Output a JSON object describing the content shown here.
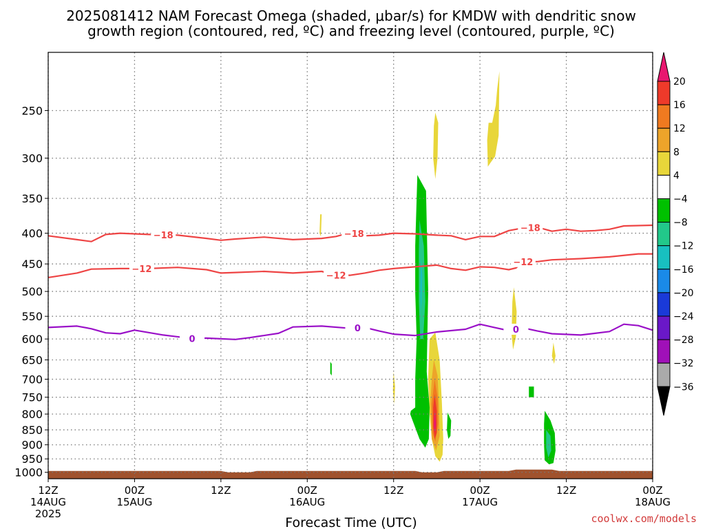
{
  "title": {
    "line1": "2025081412 NAM Forecast Omega (shaded, μbar/s) for KMDW with dendritic snow",
    "line2": "growth region (contoured, red, ºC) and freezing level (contoured, purple, ºC)"
  },
  "credit": "coolwx.com/models",
  "colors": {
    "snow_growth_contour": "#ee4444",
    "freezing_contour": "#9a10c8",
    "ground": "#a0522d",
    "grid": "#777777"
  },
  "chart_data": {
    "type": "heatmap",
    "xlabel": "Forecast Time (UTC)",
    "x_range_hours": [
      0,
      84
    ],
    "y_range_mb": [
      200,
      1025
    ],
    "y_scale": "log-pressure (inverted)",
    "grid": true,
    "x_ticks": [
      {
        "hour": 0,
        "label": "12Z",
        "date": "14AUG",
        "year": "2025"
      },
      {
        "hour": 12,
        "label": "00Z",
        "date": "15AUG"
      },
      {
        "hour": 24,
        "label": "12Z"
      },
      {
        "hour": 36,
        "label": "00Z",
        "date": "16AUG"
      },
      {
        "hour": 48,
        "label": "12Z"
      },
      {
        "hour": 60,
        "label": "00Z",
        "date": "17AUG"
      },
      {
        "hour": 72,
        "label": "12Z"
      },
      {
        "hour": 84,
        "label": "00Z",
        "date": "18AUG"
      }
    ],
    "y_ticks": [
      250,
      300,
      350,
      400,
      450,
      500,
      550,
      600,
      650,
      700,
      750,
      800,
      850,
      900,
      950,
      1000
    ],
    "colorbar": {
      "labels": [
        "20",
        "16",
        "12",
        "8",
        "4",
        "−4",
        "−8",
        "−12",
        "−16",
        "−20",
        "−24",
        "−28",
        "−32",
        "−36"
      ],
      "colors": [
        "#e8176f",
        "#ee3a2a",
        "#f07a20",
        "#eda42a",
        "#e8d63a",
        "#ffffff",
        "#00c000",
        "#22c88a",
        "#18c0c0",
        "#1a8ae8",
        "#1a3ad8",
        "#6a18c8",
        "#a010b8",
        "#aaaaaa",
        "#000000"
      ]
    },
    "contours": {
      "minus18": {
        "label": "−18",
        "label_hours": [
          16,
          42.5,
          67
        ],
        "points": [
          [
            0,
            404
          ],
          [
            4,
            410
          ],
          [
            6,
            413
          ],
          [
            8,
            402
          ],
          [
            10,
            400
          ],
          [
            14,
            402
          ],
          [
            18,
            403
          ],
          [
            22,
            408
          ],
          [
            24,
            411
          ],
          [
            26,
            409
          ],
          [
            30,
            406
          ],
          [
            34,
            410
          ],
          [
            38,
            408
          ],
          [
            40,
            405
          ],
          [
            42,
            399
          ],
          [
            44,
            404
          ],
          [
            46,
            403
          ],
          [
            48,
            400
          ],
          [
            51,
            401
          ],
          [
            54,
            403
          ],
          [
            56,
            404
          ],
          [
            58,
            410
          ],
          [
            60,
            405
          ],
          [
            62,
            405
          ],
          [
            64,
            396
          ],
          [
            66,
            392
          ],
          [
            68,
            391
          ],
          [
            70,
            397
          ],
          [
            72,
            394
          ],
          [
            74,
            397
          ],
          [
            76,
            396
          ],
          [
            78,
            394
          ],
          [
            80,
            389
          ],
          [
            84,
            388
          ]
        ]
      },
      "minus12": {
        "label": "−12",
        "label_hours": [
          13,
          40,
          66
        ],
        "points": [
          [
            0,
            474
          ],
          [
            4,
            466
          ],
          [
            6,
            459
          ],
          [
            10,
            458
          ],
          [
            14,
            458
          ],
          [
            18,
            456
          ],
          [
            22,
            460
          ],
          [
            24,
            466
          ],
          [
            26,
            465
          ],
          [
            30,
            463
          ],
          [
            34,
            466
          ],
          [
            38,
            463
          ],
          [
            40,
            470
          ],
          [
            42,
            470
          ],
          [
            44,
            466
          ],
          [
            46,
            461
          ],
          [
            48,
            458
          ],
          [
            52,
            454
          ],
          [
            54,
            452
          ],
          [
            56,
            458
          ],
          [
            58,
            461
          ],
          [
            60,
            455
          ],
          [
            62,
            456
          ],
          [
            64,
            460
          ],
          [
            65,
            457
          ],
          [
            66,
            446
          ],
          [
            68,
            446
          ],
          [
            70,
            443
          ],
          [
            74,
            441
          ],
          [
            78,
            438
          ],
          [
            82,
            433
          ],
          [
            84,
            433
          ]
        ]
      },
      "freezing": {
        "label": "0",
        "label_hours": [
          20,
          43,
          65
        ],
        "points": [
          [
            0,
            574
          ],
          [
            4,
            571
          ],
          [
            6,
            577
          ],
          [
            8,
            586
          ],
          [
            10,
            588
          ],
          [
            12,
            580
          ],
          [
            16,
            591
          ],
          [
            20,
            599
          ],
          [
            22,
            598
          ],
          [
            26,
            601
          ],
          [
            28,
            597
          ],
          [
            32,
            587
          ],
          [
            34,
            573
          ],
          [
            38,
            571
          ],
          [
            42,
            576
          ],
          [
            44,
            574
          ],
          [
            46,
            582
          ],
          [
            48,
            589
          ],
          [
            51,
            592
          ],
          [
            54,
            584
          ],
          [
            58,
            578
          ],
          [
            60,
            567
          ],
          [
            62,
            574
          ],
          [
            64,
            581
          ],
          [
            66,
            575
          ],
          [
            68,
            582
          ],
          [
            70,
            588
          ],
          [
            74,
            591
          ],
          [
            76,
            587
          ],
          [
            78,
            583
          ],
          [
            80,
            567
          ],
          [
            82,
            570
          ],
          [
            84,
            580
          ]
        ]
      }
    },
    "omega_regions": [
      {
        "band": "4 to 8",
        "points": [
          [
            53,
            600
          ],
          [
            53.8,
            585
          ],
          [
            54.4,
            650
          ],
          [
            54.7,
            760
          ],
          [
            54.9,
            880
          ],
          [
            54.8,
            935
          ],
          [
            54.4,
            960
          ],
          [
            53.8,
            940
          ],
          [
            53.3,
            880
          ],
          [
            53,
            800
          ],
          [
            52.8,
            700
          ]
        ]
      },
      {
        "band": "8 to 12",
        "points": [
          [
            53.6,
            650
          ],
          [
            54.1,
            690
          ],
          [
            54.3,
            770
          ],
          [
            54.4,
            870
          ],
          [
            53.9,
            920
          ],
          [
            53.3,
            880
          ],
          [
            53.1,
            770
          ],
          [
            53.3,
            700
          ]
        ]
      },
      {
        "band": "12 to 16",
        "points": [
          [
            53.7,
            700
          ],
          [
            54.1,
            750
          ],
          [
            54.2,
            830
          ],
          [
            53.8,
            890
          ],
          [
            53.4,
            860
          ],
          [
            53.3,
            770
          ]
        ]
      },
      {
        "band": "16 to 20",
        "points": [
          [
            53.7,
            740
          ],
          [
            54,
            790
          ],
          [
            54,
            860
          ],
          [
            53.7,
            880
          ],
          [
            53.5,
            840
          ],
          [
            53.5,
            780
          ]
        ]
      },
      {
        "band": "above 20",
        "points": [
          [
            53.7,
            790
          ],
          [
            53.9,
            830
          ],
          [
            53.7,
            860
          ],
          [
            53.6,
            830
          ]
        ]
      },
      {
        "band": "4 to 8",
        "points": [
          [
            53.8,
            252
          ],
          [
            54.2,
            262
          ],
          [
            54.1,
            300
          ],
          [
            53.8,
            325
          ],
          [
            53.5,
            300
          ],
          [
            53.6,
            265
          ]
        ]
      },
      {
        "band": "4 to 8",
        "points": [
          [
            62.2,
            245
          ],
          [
            62.4,
            230
          ],
          [
            62.7,
            215
          ],
          [
            62.6,
            275
          ],
          [
            62.1,
            298
          ],
          [
            61.5,
            305
          ],
          [
            61.1,
            310
          ],
          [
            61.0,
            280
          ],
          [
            61.2,
            262
          ],
          [
            61.7,
            262
          ]
        ]
      },
      {
        "band": "4 to 8",
        "points": [
          [
            37.8,
            372
          ],
          [
            38.0,
            372
          ],
          [
            37.9,
            405
          ],
          [
            37.7,
            400
          ]
        ]
      },
      {
        "band": "4 to 8",
        "points": [
          [
            64.7,
            492
          ],
          [
            65.1,
            540
          ],
          [
            65.0,
            595
          ],
          [
            64.6,
            625
          ],
          [
            64.4,
            590
          ],
          [
            64.5,
            520
          ]
        ]
      },
      {
        "band": "4 to 8",
        "points": [
          [
            48,
            680
          ],
          [
            48.2,
            720
          ],
          [
            48.1,
            770
          ],
          [
            47.9,
            730
          ]
        ]
      },
      {
        "band": "4 to 8",
        "points": [
          [
            70.2,
            608
          ],
          [
            70.5,
            640
          ],
          [
            70.3,
            660
          ],
          [
            70,
            640
          ]
        ]
      },
      {
        "band": "−8 to −4",
        "points": [
          [
            51.3,
            320
          ],
          [
            52.5,
            340
          ],
          [
            52.8,
            500
          ],
          [
            52.6,
            680
          ],
          [
            53.0,
            780
          ],
          [
            52.9,
            880
          ],
          [
            52.4,
            910
          ],
          [
            51.6,
            880
          ],
          [
            50.8,
            830
          ],
          [
            50.3,
            800
          ],
          [
            50.4,
            790
          ],
          [
            51,
            780
          ],
          [
            51,
            700
          ],
          [
            51.2,
            600
          ],
          [
            51,
            500
          ],
          [
            51,
            420
          ]
        ]
      },
      {
        "band": "−12 to −8",
        "points": [
          [
            51.6,
            380
          ],
          [
            52.2,
            420
          ],
          [
            52.4,
            520
          ],
          [
            52.1,
            600
          ],
          [
            51.7,
            600
          ],
          [
            51.5,
            520
          ],
          [
            51.5,
            430
          ]
        ]
      },
      {
        "band": "−16 to −12",
        "points": [
          [
            51.8,
            440
          ],
          [
            52,
            470
          ],
          [
            51.9,
            520
          ],
          [
            51.8,
            540
          ],
          [
            51.7,
            500
          ]
        ]
      },
      {
        "band": "−8 to −4",
        "points": [
          [
            69,
            790
          ],
          [
            69.8,
            820
          ],
          [
            70.4,
            860
          ],
          [
            70.5,
            920
          ],
          [
            70.2,
            965
          ],
          [
            69.6,
            970
          ],
          [
            69,
            955
          ],
          [
            68.9,
            900
          ],
          [
            68.9,
            830
          ]
        ]
      },
      {
        "band": "−12 to −8",
        "points": [
          [
            69.2,
            850
          ],
          [
            69.8,
            870
          ],
          [
            69.9,
            920
          ],
          [
            69.5,
            945
          ],
          [
            69.2,
            910
          ]
        ]
      },
      {
        "band": "−8 to −4",
        "points": [
          [
            55.5,
            795
          ],
          [
            56,
            820
          ],
          [
            55.9,
            870
          ],
          [
            55.6,
            880
          ],
          [
            55.4,
            850
          ]
        ]
      },
      {
        "band": "−8 to −4",
        "points": [
          [
            66.8,
            720
          ],
          [
            67.5,
            720
          ],
          [
            67.5,
            750
          ],
          [
            66.8,
            750
          ]
        ]
      },
      {
        "band": "−8 to −4",
        "points": [
          [
            39.2,
            655
          ],
          [
            39.4,
            660
          ],
          [
            39.4,
            690
          ],
          [
            39.2,
            685
          ]
        ]
      }
    ]
  }
}
